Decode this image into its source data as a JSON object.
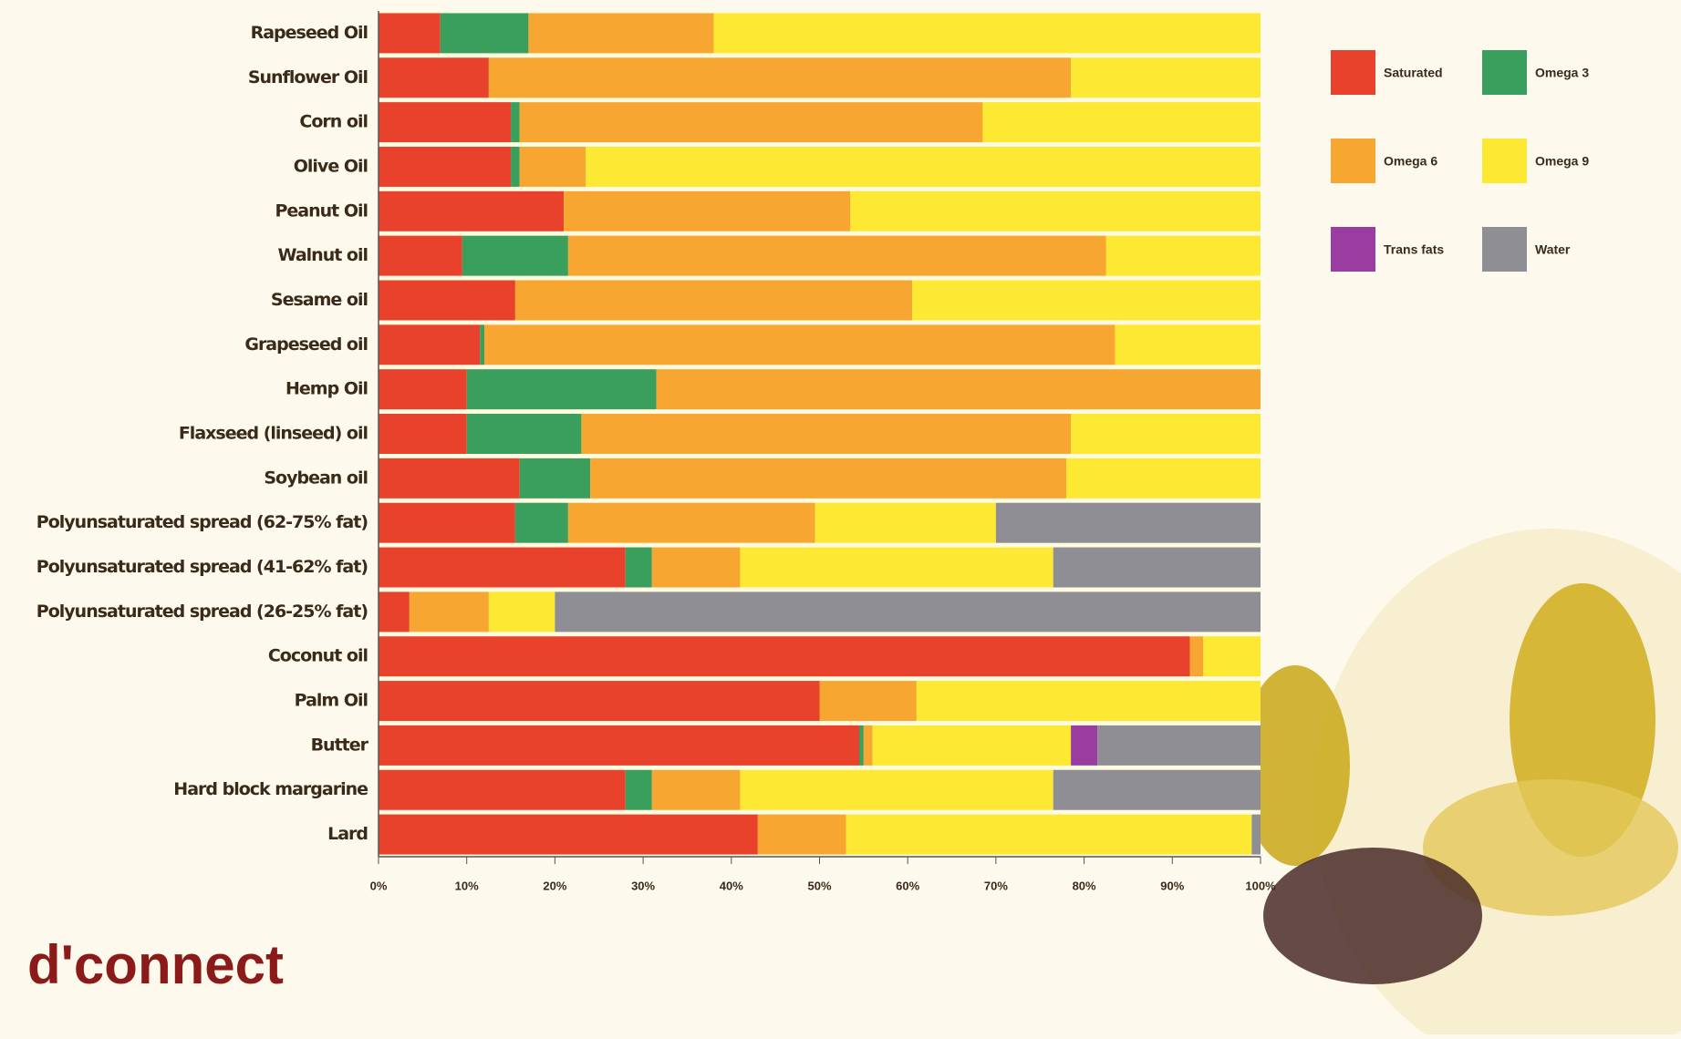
{
  "chart_data": {
    "type": "bar",
    "orientation": "horizontal",
    "stacked": true,
    "categories": [
      "Rapeseed Oil",
      "Sunflower Oil",
      "Corn oil",
      "Olive Oil",
      "Peanut Oil",
      "Walnut oil",
      "Sesame oil",
      "Grapeseed oil",
      "Hemp Oil",
      "Flaxseed (linseed) oil",
      "Soybean oil",
      "Polyunsaturated spread (62-75% fat)",
      "Polyunsaturated spread (41-62% fat)",
      "Polyunsaturated spread (26-25% fat)",
      "Coconut oil",
      "Palm Oil",
      "Butter",
      "Hard block margarine",
      "Lard"
    ],
    "series": [
      {
        "name": "Saturated",
        "color": "#e8412c",
        "values": [
          7,
          12.5,
          15,
          15,
          21,
          9.5,
          15.5,
          11.5,
          10,
          10,
          16,
          15.5,
          28,
          3.5,
          92,
          50,
          54.5,
          28,
          43
        ]
      },
      {
        "name": "Omega 3",
        "color": "#3a9e5c",
        "values": [
          10,
          0,
          1,
          1,
          0,
          12,
          0,
          0.5,
          21.5,
          13,
          8,
          6,
          3,
          0,
          0,
          0,
          0.5,
          3,
          0
        ]
      },
      {
        "name": "Omega 6",
        "color": "#f7a731",
        "values": [
          21,
          66,
          52.5,
          7.5,
          32.5,
          61,
          45,
          71.5,
          68.5,
          55.5,
          54,
          28,
          10,
          9,
          1.5,
          11,
          1,
          10,
          10
        ]
      },
      {
        "name": "Omega 9",
        "color": "#fde833",
        "values": [
          62,
          21.5,
          31.5,
          76.5,
          46.5,
          17.5,
          39.5,
          16.5,
          0,
          21.5,
          22,
          20.5,
          35.5,
          7.5,
          6.5,
          39,
          22.5,
          35.5,
          46
        ]
      },
      {
        "name": "Trans fats",
        "color": "#9b3da0",
        "values": [
          0,
          0,
          0,
          0,
          0,
          0,
          0,
          0,
          0,
          0,
          0,
          0,
          0,
          0,
          0,
          0,
          3,
          0,
          0
        ]
      },
      {
        "name": "Water",
        "color": "#8e8e94",
        "values": [
          0,
          0,
          0,
          0,
          0,
          0,
          0,
          0,
          0,
          0,
          0,
          30,
          23.5,
          80,
          0,
          0,
          18.5,
          23.5,
          1
        ]
      }
    ],
    "xlim": [
      0,
      100
    ],
    "xticks": [
      {
        "value": 0,
        "label": "0%"
      },
      {
        "value": 10,
        "label": "10%"
      },
      {
        "value": 20,
        "label": "20%"
      },
      {
        "value": 30,
        "label": "30%"
      },
      {
        "value": 40,
        "label": "40%"
      },
      {
        "value": 50,
        "label": "50%"
      },
      {
        "value": 60,
        "label": "60%"
      },
      {
        "value": 70,
        "label": "70%"
      },
      {
        "value": 80,
        "label": "80%"
      },
      {
        "value": 90,
        "label": "90%"
      },
      {
        "value": 100,
        "label": "100%"
      }
    ],
    "logo": "d'connect"
  }
}
